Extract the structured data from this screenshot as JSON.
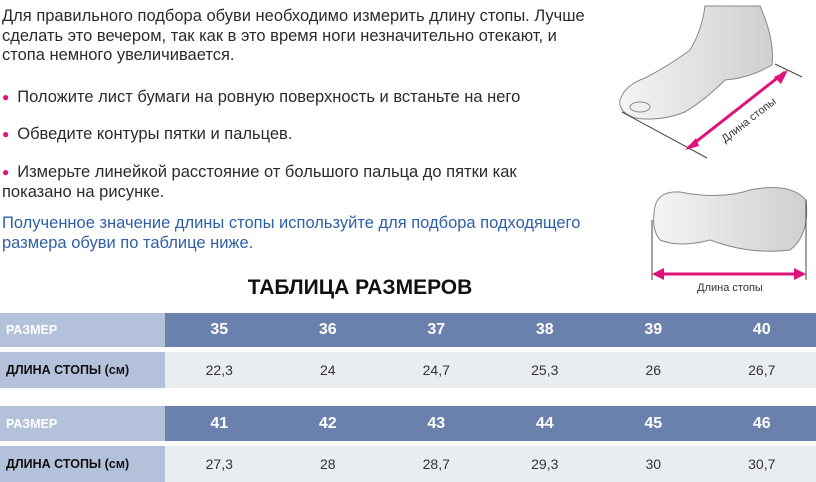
{
  "intro": "Для правильного подбора обуви необходимо измерить длину стопы. Лучше сделать это вечером, так как в это время ноги незначительно отекают, и стопа немного увеличивается.",
  "bullets": [
    "Положите лист бумаги на ровную поверхность и встаньте на него",
    "Обведите контуры пятки и пальцев.",
    "Измерьте линейкой расстояние от большого пальца до пятки как показано на рисунке."
  ],
  "note": "Полученное значение длины стопы используйте для подбора подходящего размера обуви по таблице ниже.",
  "figure": {
    "label_side": "Длина стопы",
    "label_sole": "Длина стопы",
    "accent": "#e0127a"
  },
  "table": {
    "title": "ТАБЛИЦА РАЗМЕРОВ",
    "size_label": "РАЗМЕР",
    "length_label": "ДЛИНА СТОПЫ (см)",
    "blocks": [
      {
        "sizes": [
          "35",
          "36",
          "37",
          "38",
          "39",
          "40"
        ],
        "lengths": [
          "22,3",
          "24",
          "24,7",
          "25,3",
          "26",
          "26,7"
        ]
      },
      {
        "sizes": [
          "41",
          "42",
          "43",
          "44",
          "45",
          "46"
        ],
        "lengths": [
          "27,3",
          "28",
          "28,7",
          "29,3",
          "30",
          "30,7"
        ]
      }
    ]
  }
}
